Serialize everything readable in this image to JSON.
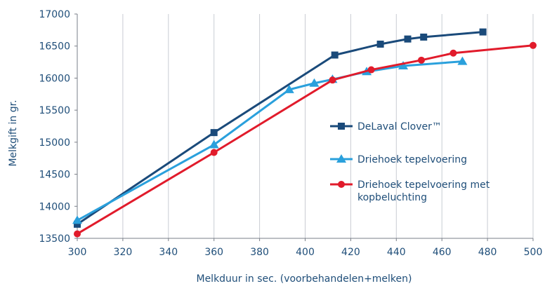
{
  "chart_data": {
    "type": "line",
    "xlabel": "Melkduur in sec. (voorbehandelen+melken)",
    "ylabel": "Melkgift in gr.",
    "xlim": [
      300,
      500
    ],
    "ylim": [
      13500,
      17000
    ],
    "xticks": [
      "300",
      "320",
      "340",
      "360",
      "380",
      "400",
      "420",
      "440",
      "460",
      "480",
      "500"
    ],
    "yticks": [
      "13500",
      "14000",
      "14500",
      "15000",
      "15500",
      "16000",
      "16500",
      "17000"
    ],
    "grid": "vertical",
    "legend_position": "right",
    "series": [
      {
        "name": "DeLaval Clover™",
        "color": "#1a4a7a",
        "marker": "square",
        "x": [
          300,
          360,
          413,
          433,
          445,
          452,
          478
        ],
        "y": [
          13720,
          15150,
          16360,
          16530,
          16610,
          16640,
          16720
        ]
      },
      {
        "name": "Driehoek tepelvoering",
        "color": "#2aa0dc",
        "marker": "triangle",
        "x": [
          300,
          360,
          393,
          404,
          412,
          427,
          443,
          469
        ],
        "y": [
          13780,
          14960,
          15820,
          15920,
          15980,
          16100,
          16190,
          16260
        ]
      },
      {
        "name": "Driehoek tepelvoering met kopbeluchting",
        "legend_lines": [
          "Driehoek tepelvoering met",
          "kopbeluchting"
        ],
        "color": "#e11b2b",
        "marker": "circle",
        "x": [
          300,
          360,
          412,
          429,
          451,
          465,
          500
        ],
        "y": [
          13570,
          14840,
          15970,
          16130,
          16280,
          16390,
          16510
        ]
      }
    ]
  }
}
